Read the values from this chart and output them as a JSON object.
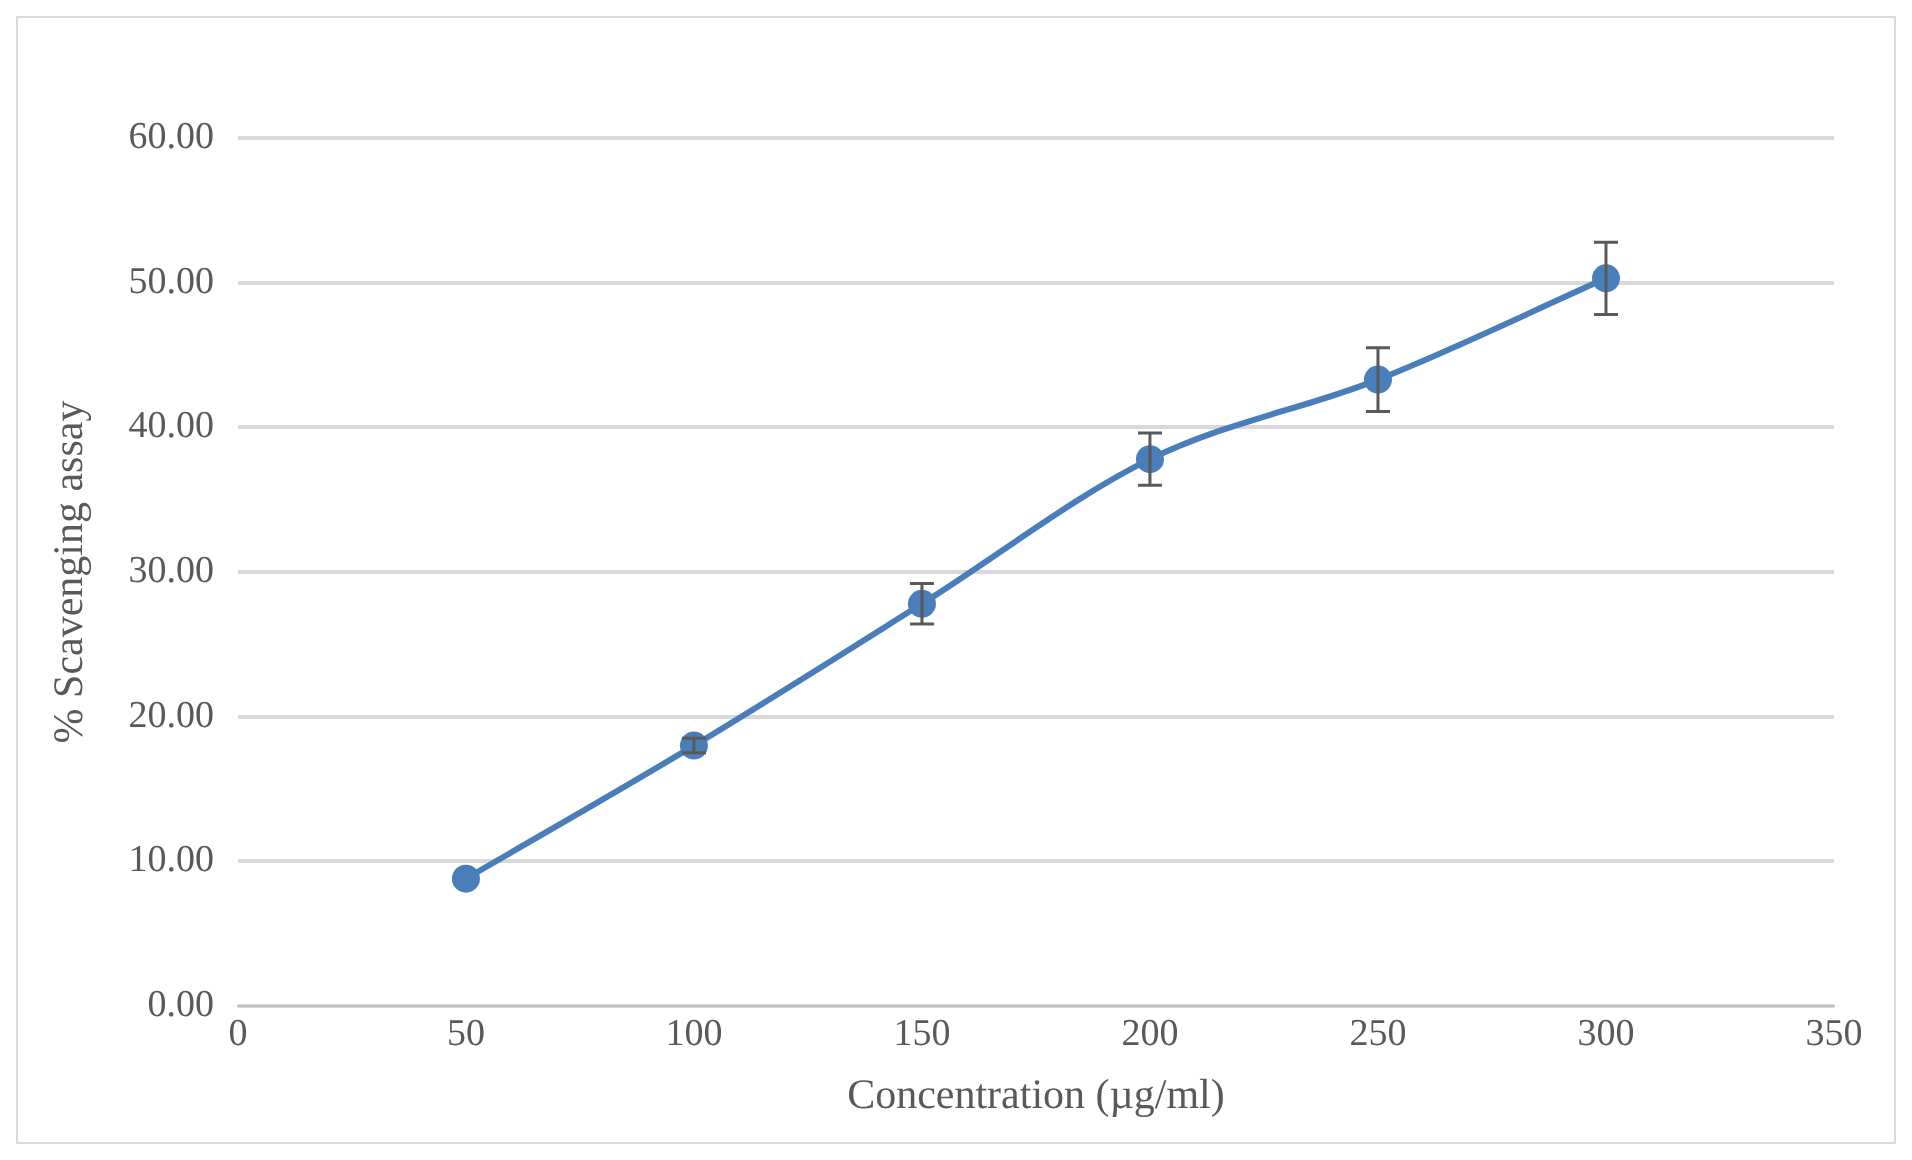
{
  "chart_data": {
    "type": "line",
    "xlabel": "Concentration (µg/ml)",
    "ylabel": "% Scavenging assay",
    "x": [
      50,
      100,
      150,
      200,
      250,
      300
    ],
    "series": [
      {
        "color": "#4a7ebb",
        "values": [
          8.8,
          18.0,
          27.8,
          37.8,
          43.3,
          50.3
        ],
        "errors": [
          null,
          0.5,
          1.4,
          1.8,
          2.2,
          2.5
        ]
      }
    ],
    "xlim": [
      0,
      350
    ],
    "xticks": [
      0,
      50,
      100,
      150,
      200,
      250,
      300,
      350
    ],
    "ylim": [
      0,
      60
    ],
    "yticks": [
      {
        "value": 0,
        "label": "0.00"
      },
      {
        "value": 10,
        "label": "10.00"
      },
      {
        "value": 20,
        "label": "20.00"
      },
      {
        "value": 30,
        "label": "30.00"
      },
      {
        "value": 40,
        "label": "40.00"
      },
      {
        "value": 50,
        "label": "50.00"
      },
      {
        "value": 60,
        "label": "60.00"
      }
    ],
    "grid": "y",
    "marker": "circle",
    "line_style": "solid",
    "legend": false
  }
}
